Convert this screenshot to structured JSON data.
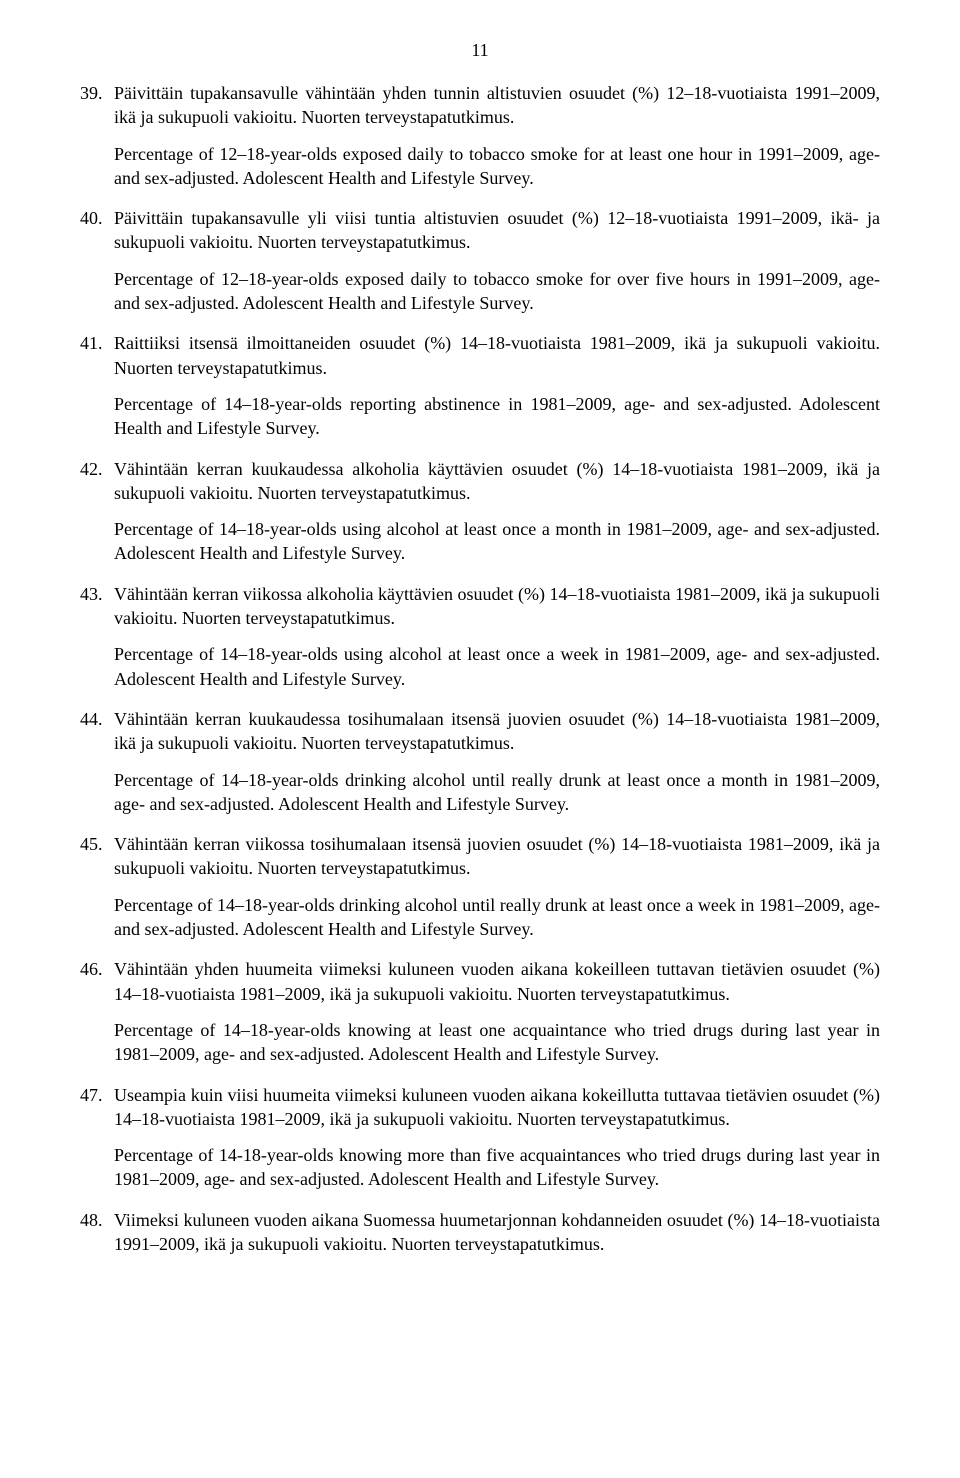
{
  "page_number": "11",
  "items": [
    {
      "num": "39.",
      "fi": "Päivittäin tupakansavulle vähintään yhden tunnin altistuvien osuudet (%) 12–18-vuotiaista 1991–2009, ikä ja sukupuoli vakioitu. Nuorten terveystapatutkimus.",
      "en": "Percentage of 12–18-year-olds exposed daily to tobacco smoke for at least one hour in 1991–2009, age- and sex-adjusted. Adolescent Health and Lifestyle Survey."
    },
    {
      "num": "40.",
      "fi": "Päivittäin tupakansavulle yli viisi tuntia altistuvien osuudet (%) 12–18-vuotiaista 1991–2009, ikä- ja sukupuoli vakioitu. Nuorten terveystapatutkimus.",
      "en": "Percentage of 12–18-year-olds exposed daily to tobacco smoke for over five hours in 1991–2009, age- and sex-adjusted. Adolescent Health and Lifestyle Survey."
    },
    {
      "num": "41.",
      "fi": "Raittiiksi itsensä ilmoittaneiden osuudet (%) 14–18-vuotiaista 1981–2009, ikä ja sukupuoli vakioitu. Nuorten terveystapatutkimus.",
      "en": "Percentage of 14–18-year-olds reporting abstinence in 1981–2009, age- and sex-adjusted. Adolescent Health and Lifestyle Survey."
    },
    {
      "num": "42.",
      "fi": "Vähintään kerran kuukaudessa alkoholia käyttävien osuudet (%) 14–18-vuotiaista 1981–2009, ikä ja sukupuoli vakioitu. Nuorten terveystapatutkimus.",
      "en": "Percentage of 14–18-year-olds using alcohol at least once a month in 1981–2009, age- and sex-adjusted. Adolescent Health and Lifestyle Survey."
    },
    {
      "num": "43.",
      "fi": "Vähintään kerran viikossa alkoholia käyttävien osuudet (%) 14–18-vuotiaista 1981–2009, ikä ja sukupuoli vakioitu. Nuorten terveystapatutkimus.",
      "en": "Percentage of 14–18-year-olds using alcohol at least once a week in 1981–2009, age- and sex-adjusted. Adolescent Health and Lifestyle Survey."
    },
    {
      "num": "44.",
      "fi": "Vähintään kerran kuukaudessa tosihumalaan itsensä juovien osuudet (%) 14–18-vuotiaista 1981–2009, ikä ja sukupuoli vakioitu. Nuorten terveystapatutkimus.",
      "en": "Percentage of 14–18-year-olds drinking alcohol until really drunk at least once a month in 1981–2009, age- and sex-adjusted. Adolescent Health and Lifestyle Survey."
    },
    {
      "num": "45.",
      "fi": "Vähintään kerran viikossa tosihumalaan itsensä juovien osuudet (%) 14–18-vuotiaista 1981–2009, ikä ja sukupuoli vakioitu. Nuorten terveystapatutkimus.",
      "en": "Percentage of 14–18-year-olds drinking alcohol until really drunk at least once a week in 1981–2009, age- and sex-adjusted. Adolescent Health and Lifestyle Survey."
    },
    {
      "num": "46.",
      "fi": "Vähintään yhden huumeita viimeksi kuluneen vuoden aikana kokeilleen tuttavan tietävien osuudet (%) 14–18-vuotiaista 1981–2009, ikä ja sukupuoli vakioitu. Nuorten terveystapatutkimus.",
      "en": "Percentage of 14–18-year-olds knowing at least one acquaintance who tried drugs during last year in 1981–2009, age- and sex-adjusted. Adolescent Health and Lifestyle Survey."
    },
    {
      "num": "47.",
      "fi": "Useampia kuin viisi huumeita viimeksi kuluneen vuoden aikana kokeillutta tuttavaa tietävien osuudet (%) 14–18-vuotiaista 1981–2009, ikä ja sukupuoli vakioitu. Nuorten terveystapatutkimus.",
      "en": "Percentage of 14-18-year-olds knowing more than five acquaintances who tried drugs during last year in 1981–2009, age- and sex-adjusted. Adolescent Health and Lifestyle Survey."
    },
    {
      "num": "48.",
      "fi": "Viimeksi kuluneen vuoden aikana Suomessa huumetarjonnan kohdanneiden osuudet (%) 14–18-vuotiaista 1991–2009, ikä ja sukupuoli vakioitu. Nuorten terveystapatutkimus.",
      "en": ""
    }
  ]
}
